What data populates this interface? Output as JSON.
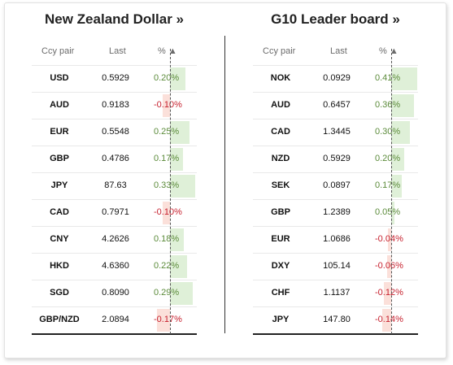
{
  "left": {
    "title": "New Zealand Dollar »",
    "headers": {
      "pair": "Ccy pair",
      "last": "Last",
      "pct": "% ▲"
    },
    "rows": [
      {
        "pair": "USD",
        "last": "0.5929",
        "pct": "0.20%",
        "value": 0.2
      },
      {
        "pair": "AUD",
        "last": "0.9183",
        "pct": "-0.10%",
        "value": -0.1
      },
      {
        "pair": "EUR",
        "last": "0.5548",
        "pct": "0.25%",
        "value": 0.25
      },
      {
        "pair": "GBP",
        "last": "0.4786",
        "pct": "0.17%",
        "value": 0.17
      },
      {
        "pair": "JPY",
        "last": "87.63",
        "pct": "0.33%",
        "value": 0.33
      },
      {
        "pair": "CAD",
        "last": "0.7971",
        "pct": "-0.10%",
        "value": -0.1
      },
      {
        "pair": "CNY",
        "last": "4.2626",
        "pct": "0.18%",
        "value": 0.18
      },
      {
        "pair": "HKD",
        "last": "4.6360",
        "pct": "0.22%",
        "value": 0.22
      },
      {
        "pair": "SGD",
        "last": "0.8090",
        "pct": "0.29%",
        "value": 0.29
      },
      {
        "pair": "GBP/NZD",
        "last": "2.0894",
        "pct": "-0.17%",
        "value": -0.17
      }
    ]
  },
  "right": {
    "title": "G10 Leader board »",
    "headers": {
      "pair": "Ccy pair",
      "last": "Last",
      "pct": "% ▲"
    },
    "rows": [
      {
        "pair": "NOK",
        "last": "0.0929",
        "pct": "0.41%",
        "value": 0.41
      },
      {
        "pair": "AUD",
        "last": "0.6457",
        "pct": "0.36%",
        "value": 0.36
      },
      {
        "pair": "CAD",
        "last": "1.3445",
        "pct": "0.30%",
        "value": 0.3
      },
      {
        "pair": "NZD",
        "last": "0.5929",
        "pct": "0.20%",
        "value": 0.2
      },
      {
        "pair": "SEK",
        "last": "0.0897",
        "pct": "0.17%",
        "value": 0.17
      },
      {
        "pair": "GBP",
        "last": "1.2389",
        "pct": "0.05%",
        "value": 0.05
      },
      {
        "pair": "EUR",
        "last": "1.0686",
        "pct": "-0.04%",
        "value": -0.04
      },
      {
        "pair": "DXY",
        "last": "105.14",
        "pct": "-0.06%",
        "value": -0.06
      },
      {
        "pair": "CHF",
        "last": "1.1137",
        "pct": "-0.12%",
        "value": -0.12
      },
      {
        "pair": "JPY",
        "last": "147.80",
        "pct": "-0.14%",
        "value": -0.14
      }
    ]
  },
  "colors": {
    "positive_text": "#5b8b3a",
    "negative_text": "#c7212f",
    "positive_bar": "#dff0d8",
    "negative_bar": "#fbe0da"
  }
}
